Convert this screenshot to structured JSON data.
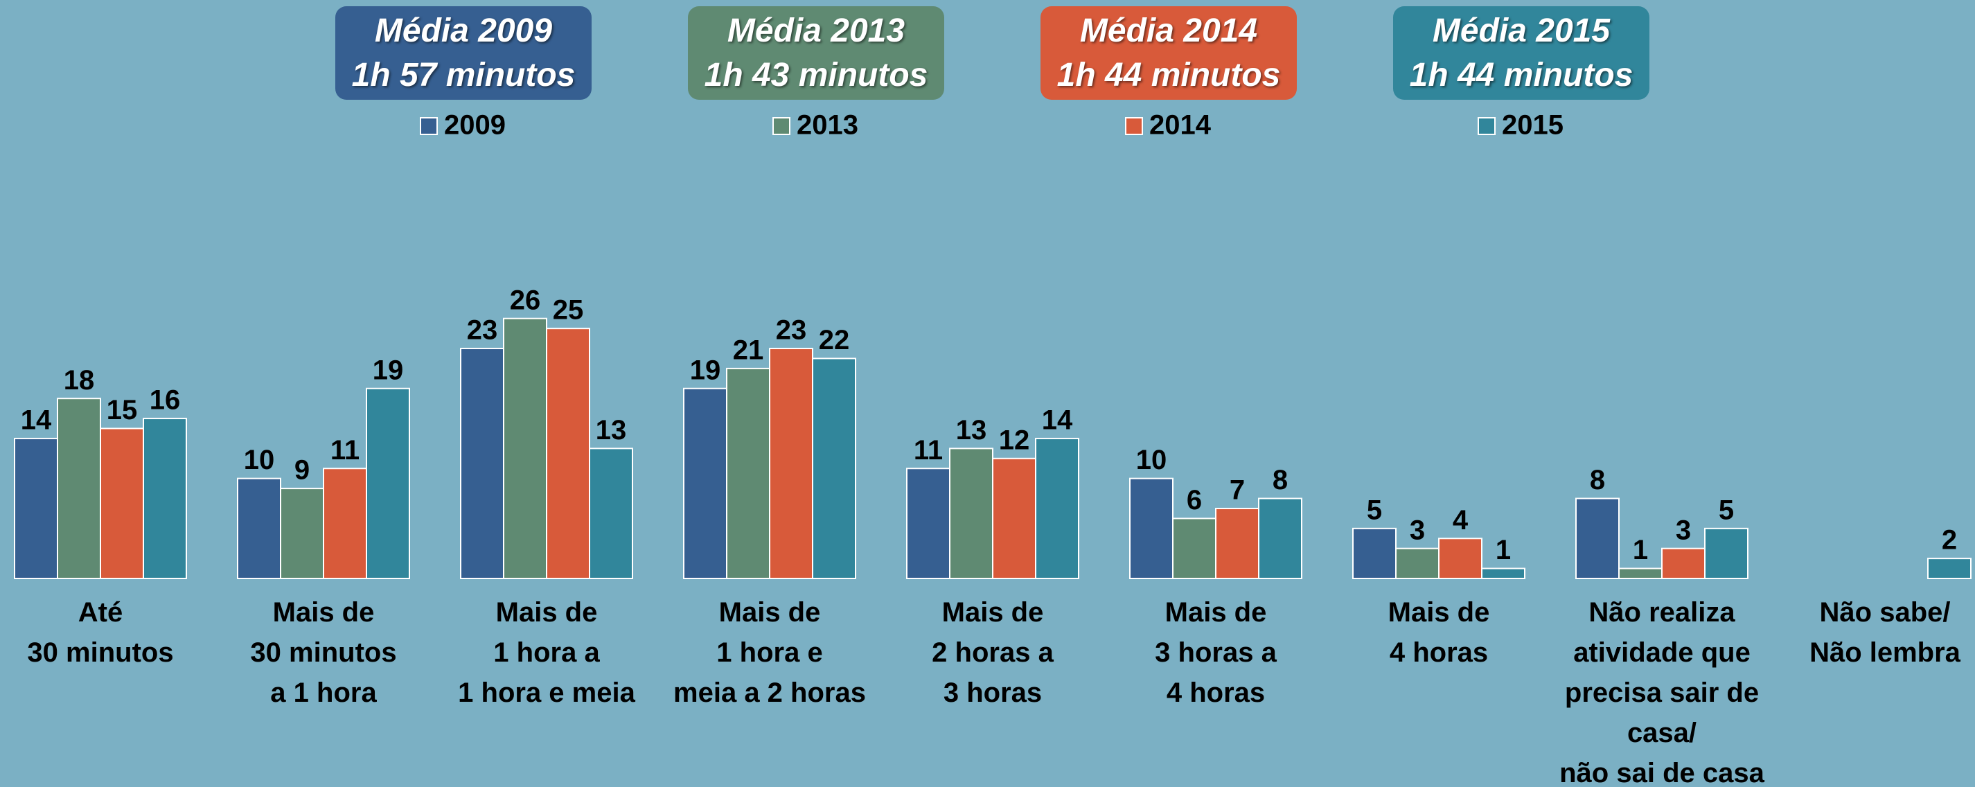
{
  "chart_data": {
    "type": "bar",
    "categories": [
      "Até\n30 minutos",
      "Mais de\n30 minutos\na 1 hora",
      "Mais de\n1 hora a\n1 hora e meia",
      "Mais de\n1 hora e\nmeia a 2 horas",
      "Mais de\n2 horas a\n3 horas",
      "Mais de\n3 horas a\n4 horas",
      "Mais de\n4 horas",
      "Não realiza\natividade que\nprecisa sair de\ncasa/\nnão sai de casa",
      "Não sabe/\nNão lembra"
    ],
    "series": [
      {
        "name": "2009",
        "color": "#365f91",
        "values": [
          14,
          10,
          23,
          19,
          11,
          10,
          5,
          8,
          null
        ]
      },
      {
        "name": "2013",
        "color": "#5f8a72",
        "values": [
          18,
          9,
          26,
          21,
          13,
          6,
          3,
          1,
          null
        ]
      },
      {
        "name": "2014",
        "color": "#d85a3a",
        "values": [
          15,
          11,
          25,
          23,
          12,
          7,
          4,
          3,
          null
        ]
      },
      {
        "name": "2015",
        "color": "#31869b",
        "values": [
          16,
          19,
          13,
          22,
          14,
          8,
          1,
          5,
          2
        ]
      }
    ],
    "annotations": [
      {
        "title": "Média 2009",
        "value": "1h 57 minutos"
      },
      {
        "title": "Média 2013",
        "value": "1h 43 minutos"
      },
      {
        "title": "Média 2014",
        "value": "1h 44 minutos"
      },
      {
        "title": "Média 2015",
        "value": "1h 44 minutos"
      }
    ],
    "ylim": [
      0,
      30
    ],
    "grid": false
  }
}
